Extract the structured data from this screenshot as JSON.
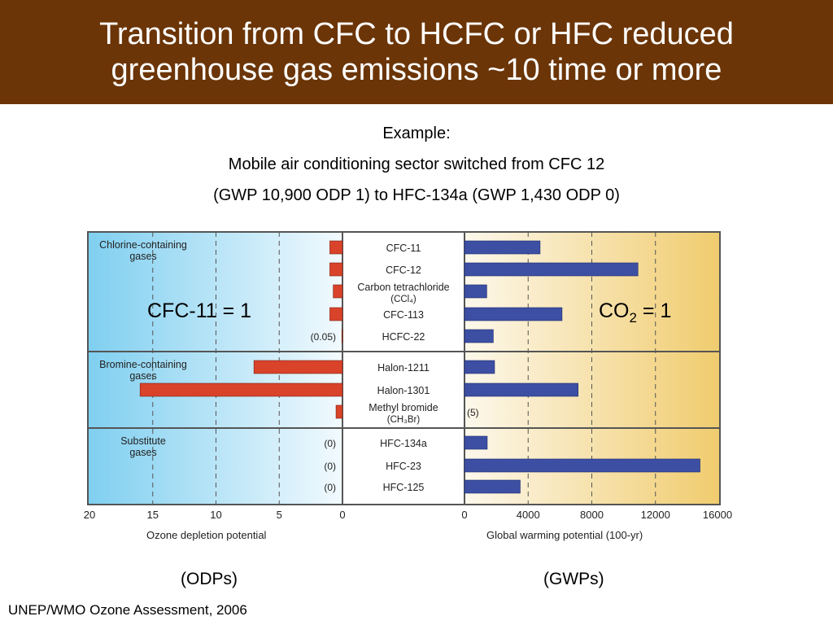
{
  "slide": {
    "title_line1": "Transition from CFC to HCFC or HFC reduced",
    "title_line2": "greenhouse gas emissions ~10 time or more",
    "example_label": "Example:",
    "example_line2": "Mobile air conditioning sector switched from CFC 12",
    "example_line3": "(GWP 10,900 ODP 1) to HFC-134a (GWP 1,430 ODP 0)",
    "odp_caption": "(ODPs)",
    "gwp_caption": "(GWPs)",
    "citation": "UNEP/WMO Ozone Assessment, 2006",
    "cfc_ref_prefix": "CFC-11 = 1",
    "co2_ref_main": "CO",
    "co2_ref_sub": "2",
    "co2_ref_suffix": " = 1"
  },
  "colors": {
    "title_bg": "#6b3507",
    "odp_bar": "#d9432a",
    "gwp_bar": "#3d4fa3",
    "odp_bg_left": "#7fcff0",
    "gwp_bg_right": "#f0cc6e"
  },
  "chart_data": {
    "type": "bar",
    "groups": [
      {
        "label": "Chlorine-containing gases",
        "line1": "Chlorine-containing",
        "line2": "gases",
        "rows": 5
      },
      {
        "label": "Bromine-containing gases",
        "line1": "Bromine-containing",
        "line2": "gases",
        "rows": 3
      },
      {
        "label": "Substitute gases",
        "line1": "Substitute",
        "line2": "gases",
        "rows": 3
      }
    ],
    "gases": [
      {
        "name": "CFC-11",
        "sub": "",
        "odp": 1,
        "gwp": 4750,
        "odp_note": "",
        "gwp_note": ""
      },
      {
        "name": "CFC-12",
        "sub": "",
        "odp": 1,
        "gwp": 10900,
        "odp_note": "",
        "gwp_note": ""
      },
      {
        "name": "Carbon tetrachloride",
        "sub": "(CCl₄)",
        "odp": 0.73,
        "gwp": 1400,
        "odp_note": "",
        "gwp_note": ""
      },
      {
        "name": "CFC-113",
        "sub": "",
        "odp": 1,
        "gwp": 6130,
        "odp_note": "",
        "gwp_note": ""
      },
      {
        "name": "HCFC-22",
        "sub": "",
        "odp": 0.05,
        "gwp": 1810,
        "odp_note": "(0.05)",
        "gwp_note": ""
      },
      {
        "name": "Halon-1211",
        "sub": "",
        "odp": 7,
        "gwp": 1890,
        "odp_note": "",
        "gwp_note": ""
      },
      {
        "name": "Halon-1301",
        "sub": "",
        "odp": 16,
        "gwp": 7140,
        "odp_note": "",
        "gwp_note": ""
      },
      {
        "name": "Methyl bromide",
        "sub": "(CH₃Br)",
        "odp": 0.51,
        "gwp": 5,
        "odp_note": "",
        "gwp_note": "(5)"
      },
      {
        "name": "HFC-134a",
        "sub": "",
        "odp": 0,
        "gwp": 1430,
        "odp_note": "(0)",
        "gwp_note": ""
      },
      {
        "name": "HFC-23",
        "sub": "",
        "odp": 0,
        "gwp": 14800,
        "odp_note": "(0)",
        "gwp_note": ""
      },
      {
        "name": "HFC-125",
        "sub": "",
        "odp": 0,
        "gwp": 3500,
        "odp_note": "(0)",
        "gwp_note": ""
      }
    ],
    "odp_axis": {
      "label": "Ozone depletion potential",
      "ticks": [
        20,
        15,
        10,
        5,
        0
      ],
      "range": [
        20,
        0
      ],
      "grid": "dashed"
    },
    "gwp_axis": {
      "label": "Global warming potential (100-yr)",
      "ticks": [
        0,
        4000,
        8000,
        12000,
        16000
      ],
      "range": [
        0,
        16000
      ],
      "grid": "dashed"
    }
  }
}
